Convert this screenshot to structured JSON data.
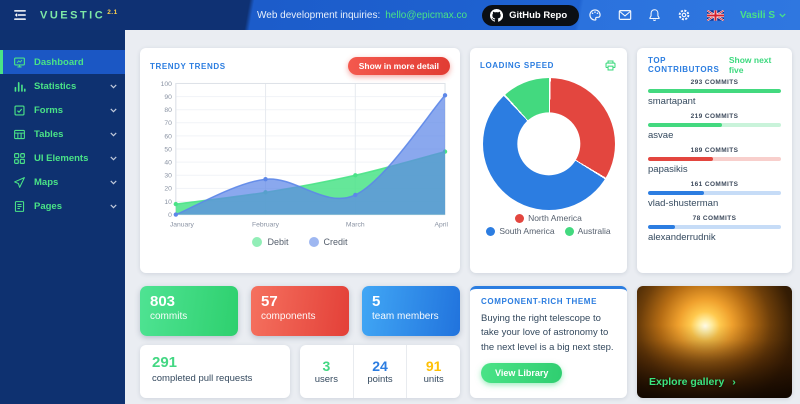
{
  "topbar": {
    "logo": "VUESTIC",
    "version": "2.1",
    "inquiries_label": "Web development inquiries:",
    "inquiries_email": "hello@epicmax.co",
    "github_label": "GitHub Repo",
    "user_name": "Vasili S"
  },
  "sidebar": {
    "items": [
      {
        "label": "Dashboard",
        "icon": "dashboard",
        "active": true,
        "expandable": false
      },
      {
        "label": "Statistics",
        "icon": "statistics",
        "active": false,
        "expandable": true
      },
      {
        "label": "Forms",
        "icon": "forms",
        "active": false,
        "expandable": true
      },
      {
        "label": "Tables",
        "icon": "tables",
        "active": false,
        "expandable": true
      },
      {
        "label": "UI Elements",
        "icon": "ui-elements",
        "active": false,
        "expandable": true
      },
      {
        "label": "Maps",
        "icon": "maps",
        "active": false,
        "expandable": true
      },
      {
        "label": "Pages",
        "icon": "pages",
        "active": false,
        "expandable": true
      }
    ]
  },
  "trendy": {
    "title": "TRENDY TRENDS",
    "button_label": "Show in more detail"
  },
  "loading": {
    "title": "LOADING SPEED"
  },
  "contributors": {
    "title": "TOP CONTRIBUTORS",
    "link_label": "Show next five",
    "items": [
      {
        "name": "smartapant",
        "commits_label": "293 COMMITS",
        "percent": 100,
        "color": "#43d97f",
        "track": "#c9f3da"
      },
      {
        "name": "asvae",
        "commits_label": "219 COMMITS",
        "percent": 56,
        "color": "#43d97f",
        "track": "#c9f3da"
      },
      {
        "name": "papasikis",
        "commits_label": "189 COMMITS",
        "percent": 49,
        "color": "#e3463f",
        "track": "#f8cfcc"
      },
      {
        "name": "vlad-shusterman",
        "commits_label": "161 COMMITS",
        "percent": 42,
        "color": "#2c7de1",
        "track": "#c6dcf7"
      },
      {
        "name": "alexanderrudnik",
        "commits_label": "78 COMMITS",
        "percent": 20,
        "color": "#2c7de1",
        "track": "#c6dcf7"
      }
    ]
  },
  "stat_cards": [
    {
      "value": "803",
      "label": "commits",
      "gradient": [
        "#4fe393",
        "#2ed06e"
      ]
    },
    {
      "value": "57",
      "label": "components",
      "gradient": [
        "#f5715f",
        "#e34038"
      ]
    },
    {
      "value": "5",
      "label": "team members",
      "gradient": [
        "#41a7f5",
        "#2173dd"
      ]
    }
  ],
  "pull_requests": {
    "value": "291",
    "label": "completed pull requests",
    "color": "#43d783"
  },
  "mini_stats": [
    {
      "value": "3",
      "label": "users",
      "color": "#43d783"
    },
    {
      "value": "24",
      "label": "points",
      "color": "#2c7de1"
    },
    {
      "value": "91",
      "label": "units",
      "color": "#ffc107"
    }
  ],
  "theme_card": {
    "title": "COMPONENT-RICH THEME",
    "text": "Buying the right telescope to take your love of astronomy to the next level is a big next step.",
    "button_label": "View Library"
  },
  "gallery": {
    "link_label": "Explore gallery",
    "chevron": "›"
  },
  "chart_data": [
    {
      "type": "area",
      "title": "TRENDY TRENDS",
      "x": [
        "January",
        "February",
        "March",
        "April"
      ],
      "series": [
        {
          "name": "Debit",
          "color": "#4ae387",
          "fill_opacity": 0.85,
          "values": [
            8,
            17,
            30,
            48
          ]
        },
        {
          "name": "Credit",
          "color": "#5d87e8",
          "fill_opacity": 0.72,
          "values": [
            0,
            27,
            15,
            91
          ]
        }
      ],
      "ylim": [
        0,
        100
      ],
      "ytick_step": 10,
      "grid": true,
      "legend_position": "bottom"
    },
    {
      "type": "doughnut",
      "title": "LOADING SPEED",
      "labels": [
        "North America",
        "South America",
        "Australia"
      ],
      "values": [
        33.5,
        54.5,
        12
      ],
      "colors": [
        "#e3463f",
        "#2c7de1",
        "#43d97f"
      ],
      "cutout_percent": 48,
      "legend_position": "bottom"
    }
  ]
}
